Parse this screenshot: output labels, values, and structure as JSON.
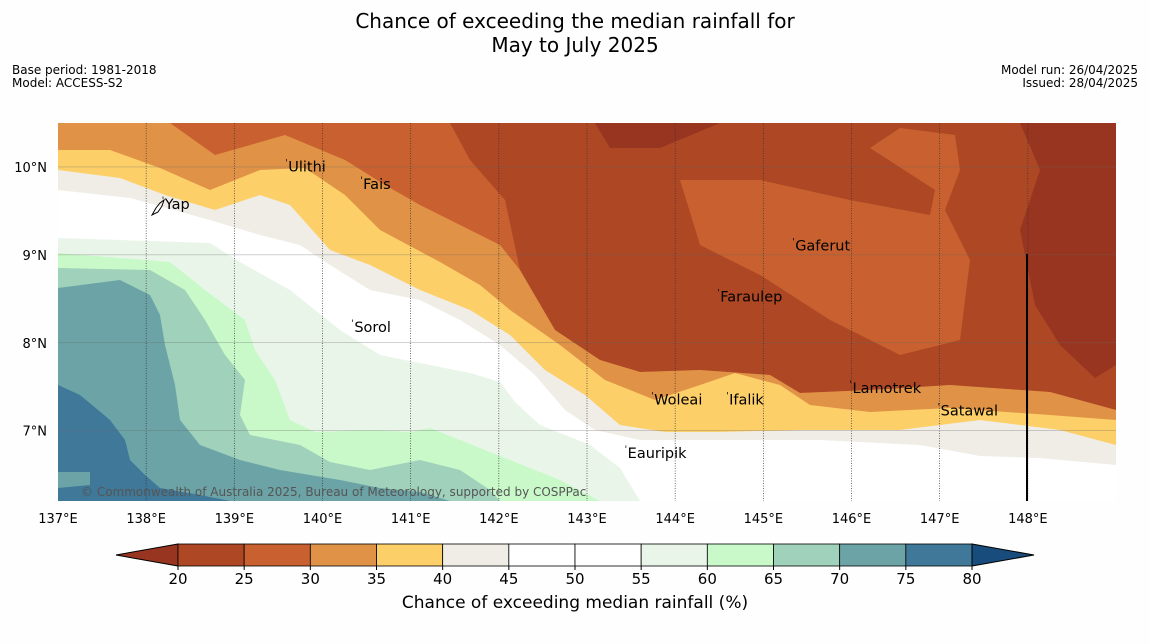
{
  "title": {
    "line1": "Chance of exceeding the median rainfall for",
    "line2": "May to July 2025"
  },
  "meta_left": {
    "base_period": "Base period: 1981-2018",
    "model": "Model: ACCESS-S2"
  },
  "meta_right": {
    "model_run": "Model run: 26/04/2025",
    "issued": "Issued: 28/04/2025"
  },
  "copyright": "© Commonwealth of Australia 2025, Bureau of Meteorology, supported by COSPPac",
  "map": {
    "lon_range": [
      137.0,
      149.0
    ],
    "lat_range": [
      6.2,
      10.5
    ],
    "lon_ticks": [
      {
        "value": 137,
        "label": "137°E"
      },
      {
        "value": 138,
        "label": "138°E"
      },
      {
        "value": 139,
        "label": "139°E"
      },
      {
        "value": 140,
        "label": "140°E"
      },
      {
        "value": 141,
        "label": "141°E"
      },
      {
        "value": 142,
        "label": "142°E"
      },
      {
        "value": 143,
        "label": "143°E"
      },
      {
        "value": 144,
        "label": "144°E"
      },
      {
        "value": 145,
        "label": "145°E"
      },
      {
        "value": 146,
        "label": "146°E"
      },
      {
        "value": 147,
        "label": "147°E"
      },
      {
        "value": 148,
        "label": "148°E"
      }
    ],
    "lat_ticks": [
      {
        "value": 10,
        "label": "10°N"
      },
      {
        "value": 9,
        "label": "9°N"
      },
      {
        "value": 8,
        "label": "8°N"
      },
      {
        "value": 7,
        "label": "7°N"
      }
    ],
    "places": [
      {
        "name": "Yap",
        "lon": 138.2,
        "lat": 9.52
      },
      {
        "name": "Ulithi",
        "lon": 139.6,
        "lat": 9.95
      },
      {
        "name": "Fais",
        "lon": 140.45,
        "lat": 9.75
      },
      {
        "name": "Gaferut",
        "lon": 145.35,
        "lat": 9.05
      },
      {
        "name": "Faraulep",
        "lon": 144.5,
        "lat": 8.47
      },
      {
        "name": "Sorol",
        "lon": 140.35,
        "lat": 8.12
      },
      {
        "name": "Lamotrek",
        "lon": 146.0,
        "lat": 7.43
      },
      {
        "name": "Woleai",
        "lon": 143.75,
        "lat": 7.3
      },
      {
        "name": "Ifalik",
        "lon": 144.6,
        "lat": 7.3
      },
      {
        "name": "Satawal",
        "lon": 147.0,
        "lat": 7.17
      },
      {
        "name": "Eauripik",
        "lon": 143.45,
        "lat": 6.69
      }
    ]
  },
  "chart_data": {
    "type": "heatmap",
    "title": "Chance of exceeding the median rainfall for May to July 2025",
    "colorbar_label": "Chance of exceeding median rainfall (%)",
    "levels": [
      20,
      25,
      30,
      35,
      40,
      45,
      50,
      55,
      60,
      65,
      70,
      75,
      80
    ],
    "colors": [
      "#983520",
      "#ad4724",
      "#c8612f",
      "#e09346",
      "#fdcf68",
      "#f0ede7",
      "#ffffff",
      "#ffffff",
      "#eaf5ea",
      "#c9f9c9",
      "#9fd1bb",
      "#6ba3a6",
      "#3f7898",
      "#184c7d"
    ],
    "extend": "both",
    "regions": [
      {
        "range": "55-60",
        "area": "west (around 138-142°E, 8-9°N)"
      },
      {
        "range": "60-70",
        "area": "south-west"
      },
      {
        "range": "70-80",
        "area": "far south-west near 137-138°E"
      },
      {
        "range": "35-40",
        "area": "band from 139°E 10°N to 148°E 6.5°N"
      },
      {
        "range": "25-35",
        "area": "central and east"
      },
      {
        "range": "<25",
        "area": "north-east and east of 148°E"
      }
    ]
  }
}
